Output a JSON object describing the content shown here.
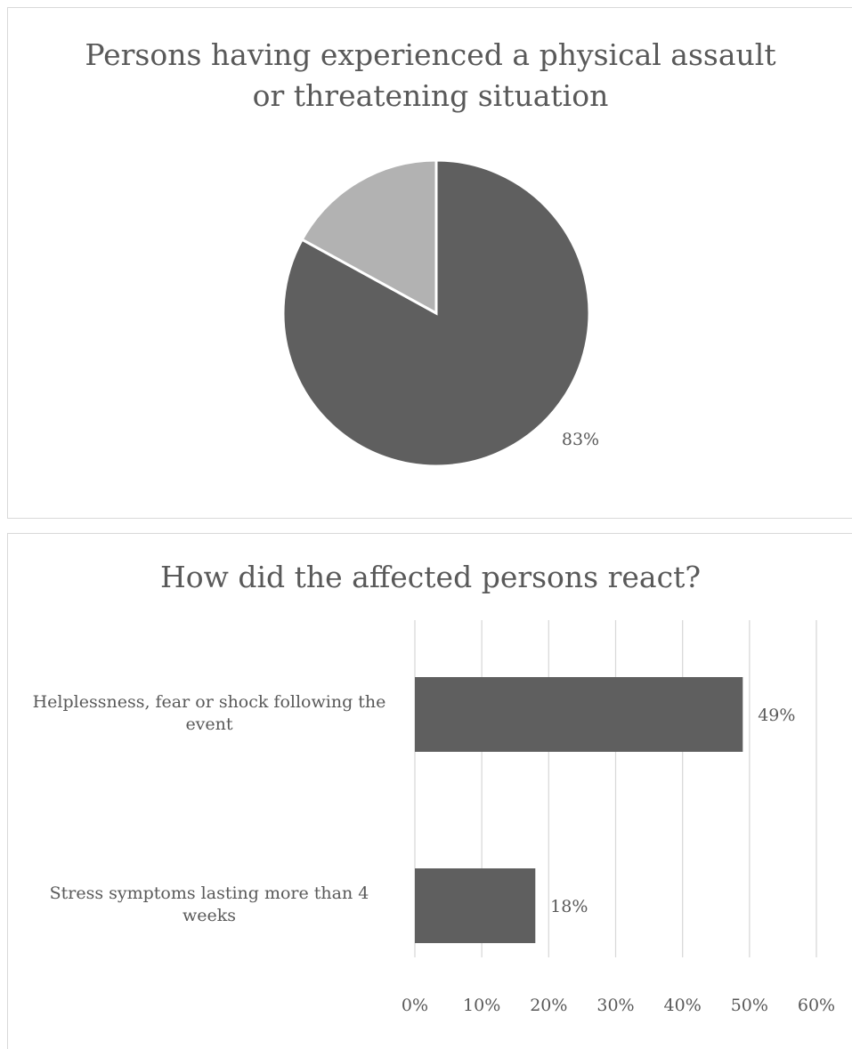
{
  "chart_data": [
    {
      "type": "pie",
      "title": "Persons having experienced a physical assault or threatening situation",
      "title_lines": [
        "Persons having experienced a physical assault",
        "or threatening situation"
      ],
      "slices": [
        {
          "value": 83,
          "label": "83%",
          "color": "#5f5f5f"
        },
        {
          "value": 17,
          "label": "",
          "color": "#b2b2b2"
        }
      ],
      "start": "12 o'clock",
      "direction": "clockwise"
    },
    {
      "type": "bar",
      "orientation": "horizontal",
      "title": "How did the affected persons react?",
      "categories": [
        "Helplessness, fear or shock following the event",
        "Stress symptoms lasting more than 4 weeks"
      ],
      "category_lines": [
        [
          "Helplessness, fear or shock following the",
          "event"
        ],
        [
          "Stress symptoms lasting more than 4",
          "weeks"
        ]
      ],
      "values": [
        49,
        18
      ],
      "data_labels": [
        "49%",
        "18%"
      ],
      "xlim": [
        0,
        60
      ],
      "x_ticks": [
        0,
        10,
        20,
        30,
        40,
        50,
        60
      ],
      "x_tick_labels": [
        "0%",
        "10%",
        "20%",
        "30%",
        "40%",
        "50%",
        "60%"
      ],
      "grid": true,
      "bar_color": "#5f5f5f"
    }
  ]
}
